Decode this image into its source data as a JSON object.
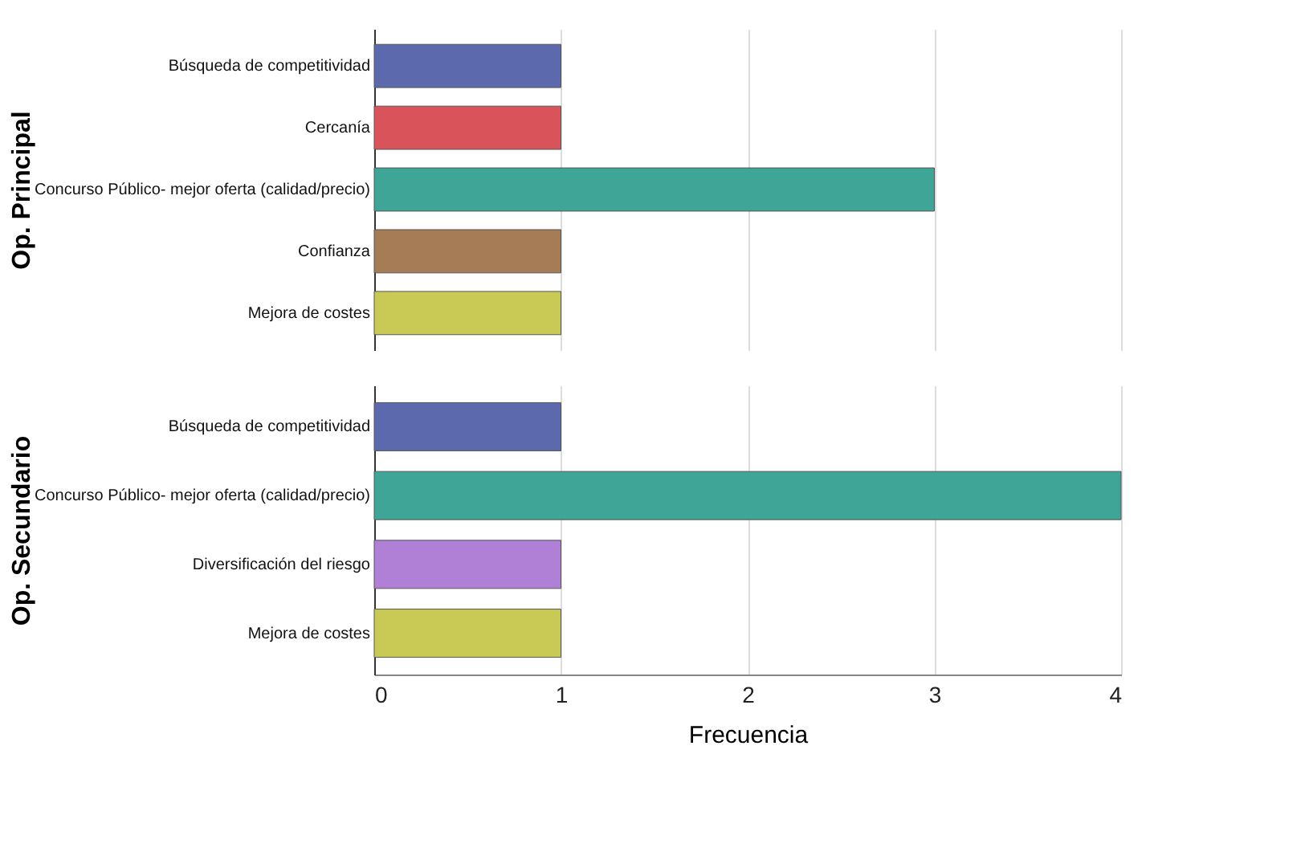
{
  "chart_data": [
    {
      "type": "bar",
      "orientation": "horizontal",
      "ylabel": "Op. Principal",
      "categories": [
        "Búsqueda de competitividad",
        "Cercanía",
        "Concurso Público- mejor oferta (calidad/precio)",
        "Confianza",
        "Mejora de costes"
      ],
      "values": [
        1,
        1,
        3,
        1,
        1
      ],
      "colors": [
        "#5c69ad",
        "#d9545a",
        "#3fa596",
        "#a57c56",
        "#c9c956"
      ],
      "xlim": [
        0,
        4
      ],
      "xticks": [
        0,
        1,
        2,
        3,
        4
      ],
      "grid": "x",
      "tick_labels": "y"
    },
    {
      "type": "bar",
      "orientation": "horizontal",
      "ylabel": "Op. Secundario",
      "xlabel": "Frecuencia",
      "categories": [
        "Búsqueda de competitividad",
        "Concurso Público- mejor oferta (calidad/precio)",
        "Diversificación del riesgo",
        "Mejora de costes"
      ],
      "values": [
        1,
        4,
        1,
        1
      ],
      "colors": [
        "#5c69ad",
        "#3fa596",
        "#b07fd6",
        "#c9c956"
      ],
      "xlim": [
        0,
        4
      ],
      "xticks": [
        0,
        1,
        2,
        3,
        4
      ],
      "grid": "x"
    }
  ]
}
